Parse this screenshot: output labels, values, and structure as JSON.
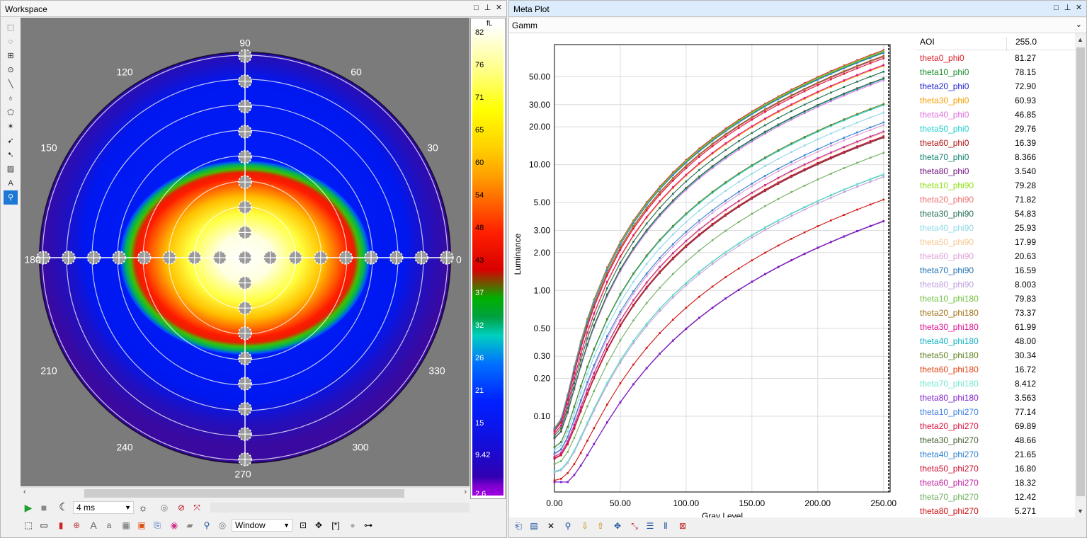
{
  "workspace": {
    "title": "Workspace",
    "polar_labels": [
      "90",
      "120",
      "60",
      "150",
      "30",
      "180",
      "0",
      "210",
      "330",
      "240",
      "300",
      "270"
    ],
    "colorbar": {
      "unit": "fL",
      "labels": [
        "82",
        "76",
        "71",
        "65",
        "60",
        "54",
        "48",
        "43",
        "37",
        "32",
        "26",
        "21",
        "15",
        "9.42",
        "2.6"
      ]
    },
    "toolbar": {
      "exposure": "4 ms",
      "roi_mode": "Window"
    },
    "tools": [
      "rect-select",
      "ellipse-select",
      "crosshair-select",
      "point-select",
      "line",
      "lasso",
      "polygon",
      "magic-wand",
      "pointer-add",
      "pointer-edit",
      "erase",
      "text-add",
      "zoom"
    ]
  },
  "meta_plot": {
    "title": "Meta Plot",
    "dropdown": "Gamm",
    "legend_header": {
      "name": "AOI",
      "value": "255.0"
    },
    "rows": [
      {
        "name": "theta0_phi0",
        "value": "81.27",
        "color": "#e0202a"
      },
      {
        "name": "theta10_phi0",
        "value": "78.15",
        "color": "#1a8a2a"
      },
      {
        "name": "theta20_phi0",
        "value": "72.90",
        "color": "#2020d0"
      },
      {
        "name": "theta30_phi0",
        "value": "60.93",
        "color": "#f5a000"
      },
      {
        "name": "theta40_phi0",
        "value": "46.85",
        "color": "#e070e0"
      },
      {
        "name": "theta50_phi0",
        "value": "29.76",
        "color": "#20d0d0"
      },
      {
        "name": "theta60_phi0",
        "value": "16.39",
        "color": "#b01010"
      },
      {
        "name": "theta70_phi0",
        "value": "8.366",
        "color": "#108070"
      },
      {
        "name": "theta80_phi0",
        "value": "3.540",
        "color": "#701080"
      },
      {
        "name": "theta10_phi90",
        "value": "79.28",
        "color": "#90e010"
      },
      {
        "name": "theta20_phi90",
        "value": "71.82",
        "color": "#f07070"
      },
      {
        "name": "theta30_phi90",
        "value": "54.83",
        "color": "#207050"
      },
      {
        "name": "theta40_phi90",
        "value": "25.93",
        "color": "#90d8e8"
      },
      {
        "name": "theta50_phi90",
        "value": "17.99",
        "color": "#f8c890"
      },
      {
        "name": "theta60_phi90",
        "value": "20.63",
        "color": "#e0a0d8"
      },
      {
        "name": "theta70_phi90",
        "value": "16.59",
        "color": "#2070b0"
      },
      {
        "name": "theta80_phi90",
        "value": "8.003",
        "color": "#c0a0e0"
      },
      {
        "name": "theta10_phi180",
        "value": "79.83",
        "color": "#70c040"
      },
      {
        "name": "theta20_phi180",
        "value": "73.37",
        "color": "#a07010"
      },
      {
        "name": "theta30_phi180",
        "value": "61.99",
        "color": "#e01090"
      },
      {
        "name": "theta40_phi180",
        "value": "48.00",
        "color": "#10b0c0"
      },
      {
        "name": "theta50_phi180",
        "value": "30.34",
        "color": "#608020"
      },
      {
        "name": "theta60_phi180",
        "value": "16.72",
        "color": "#e04010"
      },
      {
        "name": "theta70_phi180",
        "value": "8.412",
        "color": "#70e8d0"
      },
      {
        "name": "theta80_phi180",
        "value": "3.563",
        "color": "#8020d0"
      },
      {
        "name": "theta10_phi270",
        "value": "77.14",
        "color": "#4080e0"
      },
      {
        "name": "theta20_phi270",
        "value": "69.89",
        "color": "#e01040"
      },
      {
        "name": "theta30_phi270",
        "value": "48.66",
        "color": "#406030"
      },
      {
        "name": "theta40_phi270",
        "value": "21.65",
        "color": "#3080d0"
      },
      {
        "name": "theta50_phi270",
        "value": "16.80",
        "color": "#d01030"
      },
      {
        "name": "theta60_phi270",
        "value": "18.32",
        "color": "#c020a0"
      },
      {
        "name": "theta70_phi270",
        "value": "12.42",
        "color": "#70b060"
      },
      {
        "name": "theta80_phi270",
        "value": "5.271",
        "color": "#d01010"
      }
    ]
  },
  "chart_data": {
    "type": "line",
    "xlabel": "Gray Level",
    "ylabel": "Luminance",
    "xlim": [
      0,
      255
    ],
    "x_ticks": [
      "0.00",
      "50.00",
      "100.00",
      "150.00",
      "200.00",
      "250.00"
    ],
    "y_scale": "log",
    "ylim": [
      0.025,
      90
    ],
    "y_ticks": [
      "0.10",
      "0.20",
      "0.30",
      "0.50",
      "1.00",
      "2.00",
      "3.00",
      "5.00",
      "10.00",
      "20.00",
      "30.00",
      "50.00"
    ],
    "grid": true,
    "x": [
      0,
      5,
      10,
      15,
      20,
      25,
      30,
      40,
      50,
      60,
      70,
      80,
      90,
      100,
      110,
      120,
      130,
      140,
      150,
      160,
      170,
      180,
      190,
      200,
      210,
      220,
      230,
      240,
      250
    ],
    "gamma": 2.2,
    "min_value": 0.08,
    "series_max_values": [
      81.27,
      78.15,
      72.9,
      60.93,
      46.85,
      29.76,
      16.39,
      8.366,
      3.54,
      79.28,
      71.82,
      54.83,
      25.93,
      17.99,
      20.63,
      16.59,
      8.003,
      79.83,
      73.37,
      61.99,
      48.0,
      30.34,
      16.72,
      8.412,
      3.563,
      77.14,
      69.89,
      48.66,
      21.65,
      16.8,
      18.32,
      12.42,
      5.271
    ]
  }
}
